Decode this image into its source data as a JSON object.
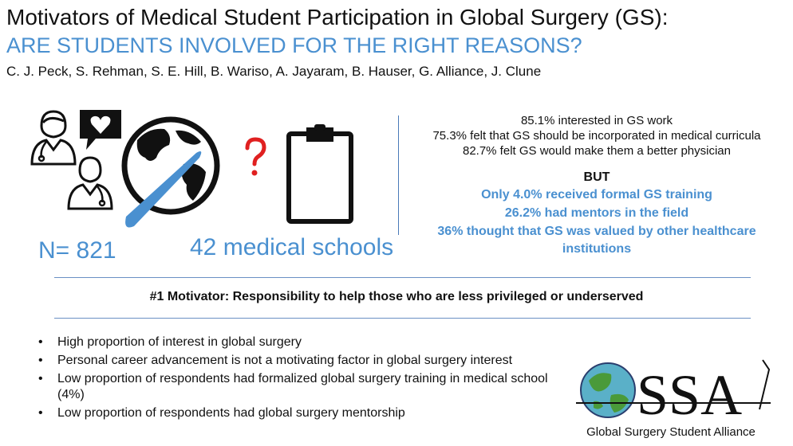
{
  "header": {
    "title": "Motivators of Medical Student Participation in Global Surgery (GS):",
    "subtitle": "ARE STUDENTS INVOLVED FOR THE RIGHT REASONS?",
    "authors": "C. J. Peck, S. Rehman, S. E. Hill, B. Wariso, A. Jayaram, B. Hauser, G. Alliance, J. Clune"
  },
  "icons": {
    "doctors": "doctor-icon",
    "speech": "heart-speech-bubble-icon",
    "globe": "globe-scalpel-icon",
    "question": "question-mark-icon",
    "clipboard": "clipboard-icon",
    "question_color": "#e02020"
  },
  "figures": {
    "n": "N= 821",
    "schools": "42 medical schools"
  },
  "stats": {
    "line1": "85.1% interested in GS work",
    "line2": "75.3% felt that GS should be incorporated in medical curricula",
    "line3": "82.7%  felt GS would make them a better physician",
    "but": "BUT",
    "line4": "Only 4.0% received formal GS training",
    "line5": "26.2% had mentors in the field",
    "line6a": "36% thought that GS was valued by other healthcare",
    "line6b": "institutions"
  },
  "motivator": "#1 Motivator: Responsibility to help those who are less privileged or underserved",
  "bullets": [
    "High proportion of interest in global surgery",
    "Personal career advancement is not a motivating factor in global surgery interest",
    "Low proportion of respondents had formalized global surgery training in medical school (4%)",
    "Low proportion of respondents had global surgery mentorship"
  ],
  "logo": {
    "letters": "GSSA",
    "caption": "Global Surgery Student Alliance"
  },
  "colors": {
    "accent": "#4a90d0",
    "question": "#e02020"
  }
}
